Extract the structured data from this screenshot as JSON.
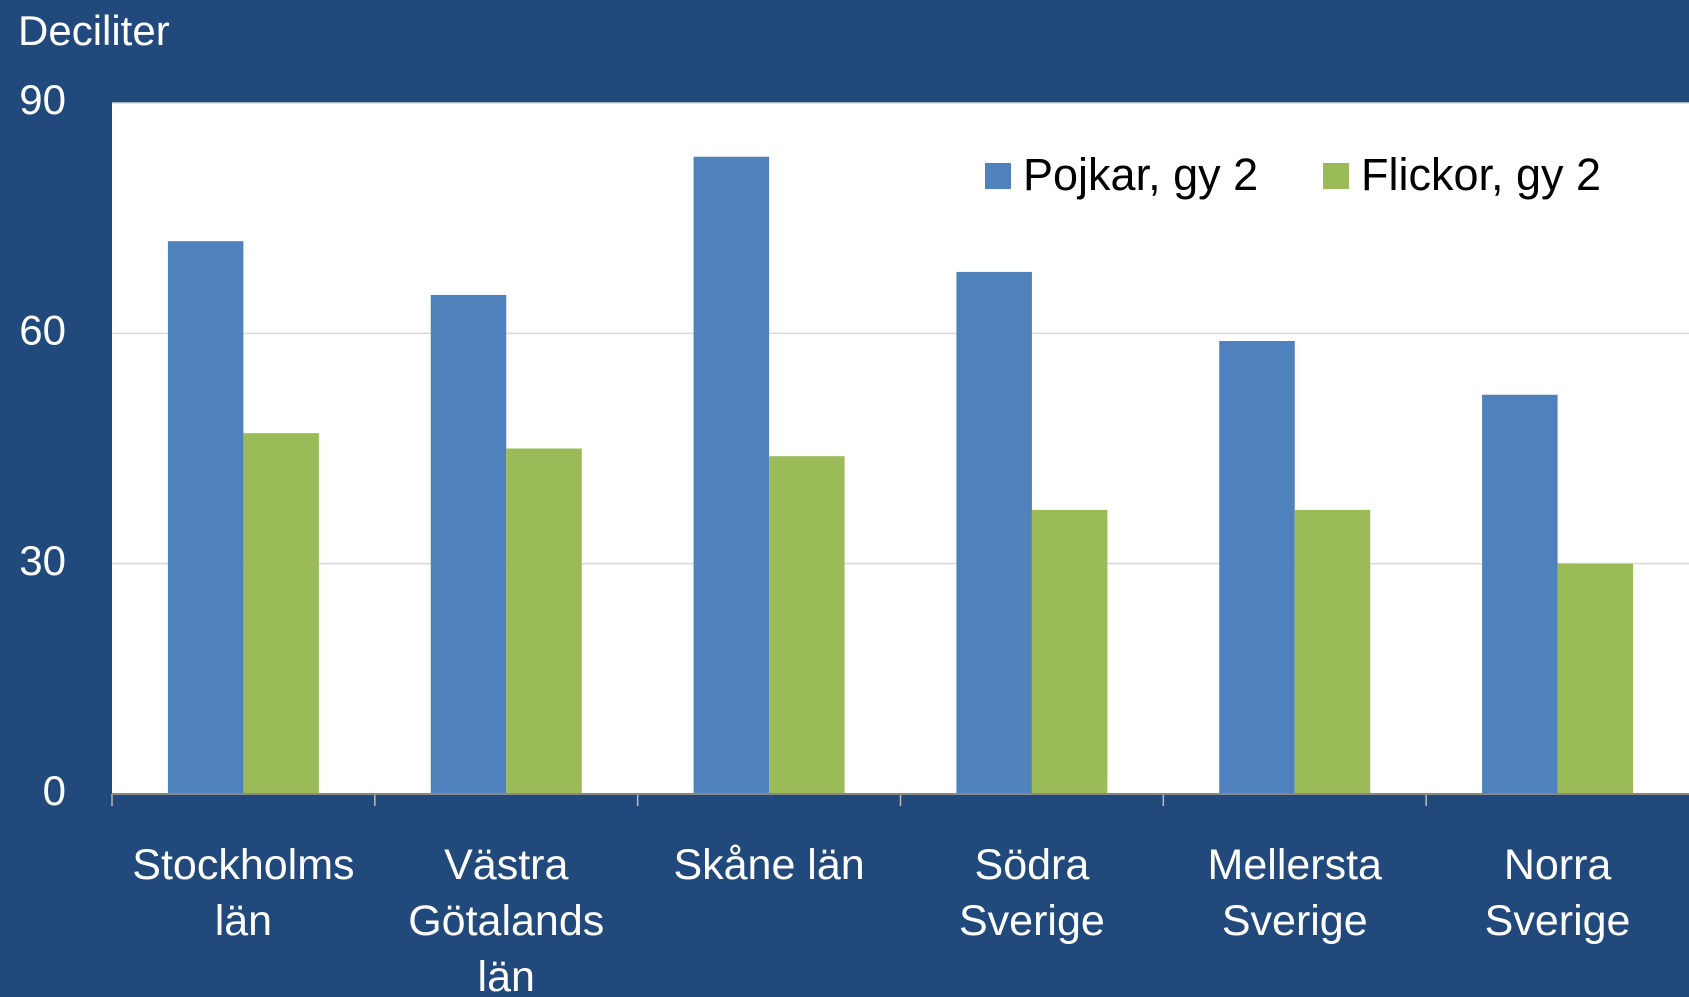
{
  "chart_data": {
    "type": "bar",
    "y_axis_label": "Deciliter",
    "categories": [
      "Stockholms\nlän",
      "Västra\nGötalands\nlän",
      "Skåne län",
      "Södra\nSverige",
      "Mellersta\nSverige",
      "Norra\nSverige"
    ],
    "series": [
      {
        "name": "Pojkar, gy 2",
        "color": "#4f81bd",
        "values": [
          72,
          65,
          83,
          68,
          59,
          52
        ]
      },
      {
        "name": "Flickor, gy 2",
        "color": "#9bbb59",
        "values": [
          47,
          45,
          44,
          37,
          37,
          30
        ]
      }
    ],
    "ylim": [
      0,
      90
    ],
    "yticks": [
      0,
      30,
      60,
      90
    ],
    "grid": true,
    "legend": "top-right"
  }
}
